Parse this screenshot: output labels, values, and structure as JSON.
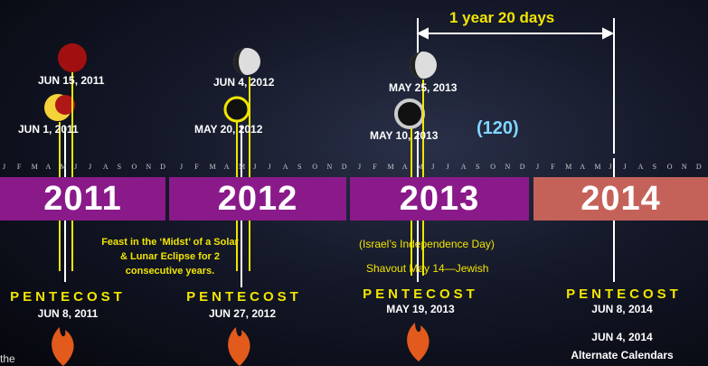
{
  "span_label": "1 year 20 days",
  "count_label": "(120)",
  "eclipses": [
    {
      "label": "JUN 15, 2011"
    },
    {
      "label": "JUN 1, 2011"
    },
    {
      "label": "JUN 4, 2012"
    },
    {
      "label": "MAY 20, 2012"
    },
    {
      "label": "MAY 25, 2013"
    },
    {
      "label": "MAY 10, 2013"
    }
  ],
  "months": [
    "J",
    "F",
    "M",
    "A",
    "M",
    "J",
    "J",
    "A",
    "S",
    "O",
    "N",
    "D"
  ],
  "years": [
    "2011",
    "2012",
    "2013",
    "2014"
  ],
  "notes": {
    "feast": "Feast in the ‘Midst’ of a Solar & Lunar Eclipse for 2 consecutive years.",
    "israel": "(Israel’s Independence Day)",
    "shavout": "Shavout May 14—Jewish"
  },
  "pentecosts": [
    {
      "title": "PENTECOST",
      "date": "JUN 8, 2011"
    },
    {
      "title": "PENTECOST",
      "date": "JUN 27, 2012"
    },
    {
      "title": "PENTECOST",
      "date": "MAY 19, 2013"
    },
    {
      "title": "PENTECOST",
      "date": "JUN 8, 2014"
    }
  ],
  "alt_date": "JUN 4, 2014",
  "alt_label": "Alternate Calendars",
  "footer_fragment": "the"
}
